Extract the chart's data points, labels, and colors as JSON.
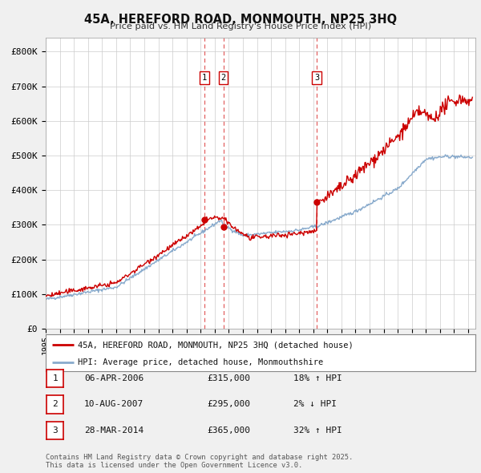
{
  "title": "45A, HEREFORD ROAD, MONMOUTH, NP25 3HQ",
  "subtitle": "Price paid vs. HM Land Registry's House Price Index (HPI)",
  "legend_line1": "45A, HEREFORD ROAD, MONMOUTH, NP25 3HQ (detached house)",
  "legend_line2": "HPI: Average price, detached house, Monmouthshire",
  "price_color": "#cc0000",
  "hpi_color": "#88aacc",
  "background_color": "#f0f0f0",
  "plot_bg_color": "#ffffff",
  "grid_color": "#cccccc",
  "yticks": [
    0,
    100000,
    200000,
    300000,
    400000,
    500000,
    600000,
    700000,
    800000
  ],
  "ytick_labels": [
    "£0",
    "£100K",
    "£200K",
    "£300K",
    "£400K",
    "£500K",
    "£600K",
    "£700K",
    "£800K"
  ],
  "xmin": 1995.0,
  "xmax": 2025.5,
  "ymin": 0,
  "ymax": 840000,
  "vlines": [
    {
      "x": 2006.27,
      "label": "1"
    },
    {
      "x": 2007.61,
      "label": "2"
    },
    {
      "x": 2014.24,
      "label": "3"
    }
  ],
  "sale_dates": [
    2006.27,
    2007.61,
    2014.24
  ],
  "sale_prices": [
    315000,
    295000,
    365000
  ],
  "table_rows": [
    {
      "num": "1",
      "date": "06-APR-2006",
      "price": "£315,000",
      "hpi": "18% ↑ HPI"
    },
    {
      "num": "2",
      "date": "10-AUG-2007",
      "price": "£295,000",
      "hpi": "2% ↓ HPI"
    },
    {
      "num": "3",
      "date": "28-MAR-2014",
      "price": "£365,000",
      "hpi": "32% ↑ HPI"
    }
  ],
  "footer": "Contains HM Land Registry data © Crown copyright and database right 2025.\nThis data is licensed under the Open Government Licence v3.0."
}
